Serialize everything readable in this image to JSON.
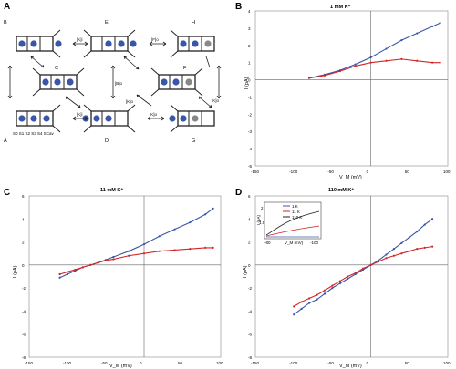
{
  "panels": {
    "A": {
      "letter": "A",
      "states": {
        "B": "B",
        "E": "E",
        "H": "H",
        "C": "C",
        "F": "F",
        "A": "A",
        "D": "D",
        "G": "G"
      },
      "rates": {
        "k1": "[K]i",
        "k2": "[K]o",
        "k3": "[K]i",
        "k4": "[K]o",
        "k5": "[B]o",
        "k6": "[F]o",
        "k7": "[K]o"
      },
      "site_labels": "S0 S1 S2 S3 S4 SCav"
    },
    "B": {
      "letter": "B",
      "title": "1 mM K⁺",
      "ylabel": "I (pA)",
      "xlabel": "V_M (mV)",
      "xticks": [
        "-150",
        "-100",
        "-50",
        "0",
        "50",
        "100"
      ],
      "yticks": [
        "4",
        "3",
        "2",
        "1",
        "0",
        "-1",
        "-2",
        "-3",
        "-4",
        "-5"
      ]
    },
    "C": {
      "letter": "C",
      "title": "11 mM K⁺",
      "ylabel": "I (pA)",
      "xlabel": "V_M (mV)",
      "xticks": [
        "-150",
        "-100",
        "-50",
        "0",
        "50",
        "100"
      ],
      "yticks": [
        "6",
        "4",
        "2",
        "0",
        "-2",
        "-4",
        "-6",
        "-8"
      ]
    },
    "D": {
      "letter": "D",
      "title": "110 mM K⁺",
      "ylabel": "I (pA)",
      "xlabel": "V_M (mV)",
      "xticks": [
        "-150",
        "-100",
        "-50",
        "0",
        "50",
        "100"
      ],
      "yticks": [
        "6",
        "4",
        "2",
        "0",
        "-2",
        "-4",
        "-6",
        "-8"
      ],
      "inset": {
        "ylabel": "I (pA)",
        "xlabel": "V_M (mV)",
        "ytick_top": "2",
        "ytick_mid": "1.5",
        "xtick_left": "-80",
        "xtick_mid": "-75",
        "xtick_right": "-100",
        "legend": [
          "1 K",
          "11 K",
          "110 K"
        ]
      }
    }
  },
  "chart_data": [
    {
      "type": "scatter",
      "title": "1 mM K⁺",
      "xlabel": "V_M (mV)",
      "ylabel": "I (pA)",
      "xlim": [
        -150,
        100
      ],
      "ylim": [
        -5,
        4
      ],
      "series": [
        {
          "color": "#3a56a8",
          "x": [
            -80,
            -60,
            -40,
            -20,
            0,
            20,
            40,
            60,
            80,
            90
          ],
          "y": [
            0.1,
            0.3,
            0.55,
            0.9,
            1.3,
            1.8,
            2.3,
            2.7,
            3.1,
            3.3
          ]
        },
        {
          "color": "#d42525",
          "x": [
            -80,
            -60,
            -40,
            -20,
            0,
            20,
            40,
            60,
            80,
            90
          ],
          "y": [
            0.1,
            0.25,
            0.5,
            0.8,
            1.0,
            1.1,
            1.2,
            1.1,
            1.0,
            1.0
          ]
        }
      ]
    },
    {
      "type": "scatter",
      "title": "11 mM K⁺",
      "xlabel": "V_M (mV)",
      "ylabel": "I (pA)",
      "xlim": [
        -150,
        100
      ],
      "ylim": [
        -8,
        6
      ],
      "series": [
        {
          "color": "#3a56a8",
          "x": [
            -110,
            -100,
            -90,
            -80,
            -70,
            -60,
            -50,
            -40,
            -20,
            0,
            20,
            40,
            60,
            80,
            90
          ],
          "y": [
            -1.1,
            -0.8,
            -0.5,
            -0.2,
            0.0,
            0.2,
            0.45,
            0.7,
            1.2,
            1.8,
            2.5,
            3.1,
            3.7,
            4.4,
            4.9
          ]
        },
        {
          "color": "#d42525",
          "x": [
            -110,
            -100,
            -90,
            -80,
            -70,
            -60,
            -50,
            -40,
            -20,
            0,
            20,
            40,
            60,
            80,
            90
          ],
          "y": [
            -0.8,
            -0.6,
            -0.4,
            -0.2,
            0.0,
            0.2,
            0.4,
            0.5,
            0.8,
            1.0,
            1.2,
            1.3,
            1.4,
            1.5,
            1.5
          ]
        }
      ]
    },
    {
      "type": "scatter",
      "title": "110 mM K⁺",
      "xlabel": "V_M (mV)",
      "ylabel": "I (pA)",
      "xlim": [
        -150,
        100
      ],
      "ylim": [
        -8,
        6
      ],
      "series": [
        {
          "color": "#3a56a8",
          "x": [
            -100,
            -90,
            -80,
            -70,
            -60,
            -50,
            -40,
            -30,
            -20,
            -10,
            0,
            10,
            20,
            30,
            40,
            50,
            60,
            70,
            80
          ],
          "y": [
            -4.3,
            -3.8,
            -3.3,
            -3.0,
            -2.5,
            -2.0,
            -1.6,
            -1.2,
            -0.8,
            -0.4,
            0.0,
            0.4,
            0.9,
            1.4,
            1.9,
            2.4,
            2.9,
            3.5,
            4.0
          ]
        },
        {
          "color": "#d42525",
          "x": [
            -100,
            -90,
            -80,
            -70,
            -60,
            -50,
            -40,
            -30,
            -20,
            -10,
            0,
            10,
            20,
            30,
            40,
            50,
            60,
            70,
            80
          ],
          "y": [
            -3.6,
            -3.2,
            -2.9,
            -2.6,
            -2.2,
            -1.8,
            -1.4,
            -1.0,
            -0.7,
            -0.3,
            0.0,
            0.3,
            0.6,
            0.8,
            1.0,
            1.2,
            1.4,
            1.5,
            1.6
          ]
        }
      ]
    }
  ]
}
